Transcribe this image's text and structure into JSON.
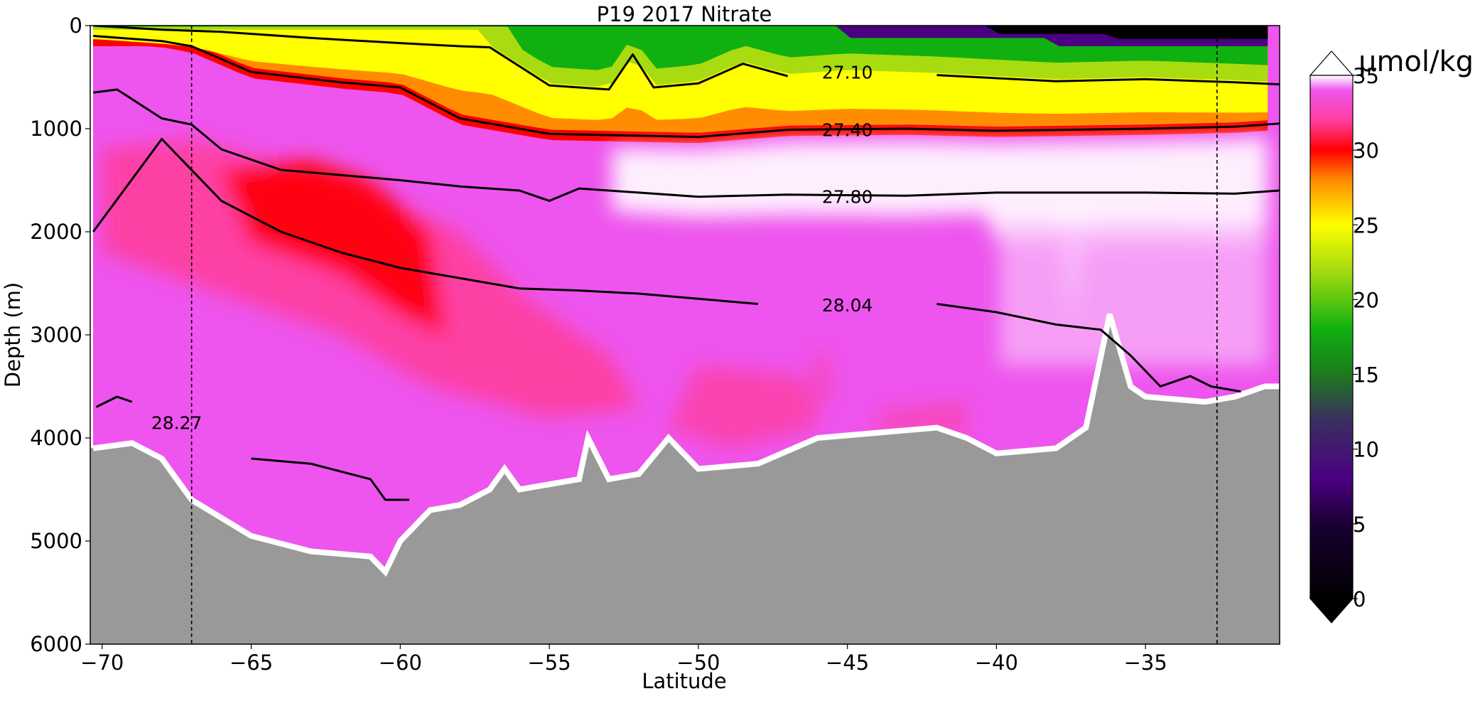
{
  "chart_data": {
    "type": "heatmap",
    "title": "P19 2017 Nitrate",
    "xlabel": "Latitude",
    "ylabel": "Depth (m)",
    "xlim": [
      -70.4,
      -30.5
    ],
    "ylim": [
      6000,
      0
    ],
    "x_ticks": [
      -70,
      -65,
      -60,
      -55,
      -50,
      -45,
      -40,
      -35
    ],
    "y_ticks": [
      0,
      1000,
      2000,
      3000,
      4000,
      5000,
      6000
    ],
    "colorbar": {
      "label": "µmol/kg",
      "range": [
        0,
        35
      ],
      "ticks": [
        0,
        5,
        10,
        15,
        20,
        25,
        30,
        35
      ],
      "extend": "both"
    },
    "colormap": [
      {
        "value": 0,
        "color": "#000000"
      },
      {
        "value": 5,
        "color": "#1a0033"
      },
      {
        "value": 8,
        "color": "#4b0082"
      },
      {
        "value": 12,
        "color": "#3a3060"
      },
      {
        "value": 15,
        "color": "#1d7a1d"
      },
      {
        "value": 18,
        "color": "#10b010"
      },
      {
        "value": 22,
        "color": "#a8dc10"
      },
      {
        "value": 25,
        "color": "#ffff00"
      },
      {
        "value": 28,
        "color": "#ff8c00"
      },
      {
        "value": 30,
        "color": "#ff0000"
      },
      {
        "value": 32,
        "color": "#ff40a0"
      },
      {
        "value": 34,
        "color": "#ee55ee"
      },
      {
        "value": 35,
        "color": "#ffffff"
      }
    ],
    "station_lines_latitude": [
      -67,
      -32.6
    ],
    "contours": [
      {
        "label": "27.10",
        "label_at": [
          -45,
          450
        ],
        "points": [
          [
            -70.3,
            0
          ],
          [
            -68,
            40
          ],
          [
            -66,
            60
          ],
          [
            -63,
            120
          ],
          [
            -60,
            170
          ],
          [
            -58,
            200
          ],
          [
            -57,
            210
          ],
          [
            -55,
            580
          ],
          [
            -53,
            620
          ],
          [
            -52.2,
            280
          ],
          [
            -51.5,
            600
          ],
          [
            -50,
            560
          ],
          [
            -48.5,
            370
          ],
          [
            -47,
            490
          ],
          [
            -45,
            450
          ],
          [
            -42,
            480
          ],
          [
            -38,
            540
          ],
          [
            -35,
            520
          ],
          [
            -32,
            550
          ],
          [
            -30.5,
            570
          ]
        ]
      },
      {
        "label": "27.40",
        "label_at": [
          -45,
          1010
        ],
        "points": [
          [
            -70.3,
            100
          ],
          [
            -68,
            150
          ],
          [
            -67,
            200
          ],
          [
            -65,
            450
          ],
          [
            -62,
            550
          ],
          [
            -60,
            600
          ],
          [
            -58,
            900
          ],
          [
            -55,
            1050
          ],
          [
            -50,
            1080
          ],
          [
            -47,
            1010
          ],
          [
            -43,
            1000
          ],
          [
            -40,
            1020
          ],
          [
            -35,
            1000
          ],
          [
            -32,
            980
          ],
          [
            -30.5,
            950
          ]
        ]
      },
      {
        "label": "27.80",
        "label_at": [
          -45,
          1660
        ],
        "points": [
          [
            -70.3,
            650
          ],
          [
            -69.5,
            620
          ],
          [
            -68,
            900
          ],
          [
            -67,
            960
          ],
          [
            -66,
            1200
          ],
          [
            -64,
            1400
          ],
          [
            -62,
            1450
          ],
          [
            -60,
            1500
          ],
          [
            -58,
            1560
          ],
          [
            -56,
            1600
          ],
          [
            -55,
            1700
          ],
          [
            -54,
            1580
          ],
          [
            -50,
            1660
          ],
          [
            -47,
            1640
          ],
          [
            -43,
            1650
          ],
          [
            -40,
            1620
          ],
          [
            -35,
            1620
          ],
          [
            -32,
            1630
          ],
          [
            -30.5,
            1600
          ]
        ]
      },
      {
        "label": "28.04",
        "label_at": [
          -45,
          2710
        ],
        "points": [
          [
            -70.3,
            2000
          ],
          [
            -68,
            1100
          ],
          [
            -66,
            1700
          ],
          [
            -64,
            2000
          ],
          [
            -62,
            2200
          ],
          [
            -60,
            2350
          ],
          [
            -58,
            2450
          ],
          [
            -56,
            2550
          ],
          [
            -54,
            2570
          ],
          [
            -52,
            2600
          ],
          [
            -50,
            2650
          ],
          [
            -48,
            2700
          ],
          [
            -45,
            2710
          ],
          [
            -42,
            2700
          ],
          [
            -40,
            2780
          ],
          [
            -38,
            2900
          ],
          [
            -36.5,
            2950
          ],
          [
            -35.5,
            3200
          ],
          [
            -34.5,
            3500
          ],
          [
            -33.5,
            3400
          ],
          [
            -32.8,
            3500
          ],
          [
            -31.8,
            3550
          ]
        ]
      },
      {
        "label": "28.27",
        "label_at": [
          -67.5,
          3850
        ],
        "points": [
          [
            -70.2,
            3700
          ],
          [
            -69.5,
            3600
          ],
          [
            -69,
            3650
          ],
          [
            -68,
            3700
          ],
          [
            -67.5,
            3850
          ],
          [
            -66.5,
            4000
          ],
          [
            -65,
            4200
          ],
          [
            -63,
            4250
          ],
          [
            -61,
            4400
          ],
          [
            -60.5,
            4600
          ],
          [
            -59.7,
            4600
          ]
        ]
      }
    ],
    "bottom_depth_m": [
      {
        "lat": -70.3,
        "depth": 4100
      },
      {
        "lat": -69,
        "depth": 4050
      },
      {
        "lat": -68,
        "depth": 4200
      },
      {
        "lat": -67,
        "depth": 4600
      },
      {
        "lat": -65,
        "depth": 4950
      },
      {
        "lat": -63,
        "depth": 5100
      },
      {
        "lat": -61,
        "depth": 5150
      },
      {
        "lat": -60.5,
        "depth": 5300
      },
      {
        "lat": -60,
        "depth": 5000
      },
      {
        "lat": -59,
        "depth": 4700
      },
      {
        "lat": -58,
        "depth": 4650
      },
      {
        "lat": -57,
        "depth": 4500
      },
      {
        "lat": -56.5,
        "depth": 4300
      },
      {
        "lat": -56,
        "depth": 4500
      },
      {
        "lat": -55,
        "depth": 4450
      },
      {
        "lat": -54,
        "depth": 4400
      },
      {
        "lat": -53.7,
        "depth": 4000
      },
      {
        "lat": -53,
        "depth": 4400
      },
      {
        "lat": -52,
        "depth": 4350
      },
      {
        "lat": -51,
        "depth": 4000
      },
      {
        "lat": -50,
        "depth": 4300
      },
      {
        "lat": -48,
        "depth": 4250
      },
      {
        "lat": -46,
        "depth": 4000
      },
      {
        "lat": -44,
        "depth": 3950
      },
      {
        "lat": -42,
        "depth": 3900
      },
      {
        "lat": -41,
        "depth": 4000
      },
      {
        "lat": -40,
        "depth": 4150
      },
      {
        "lat": -38,
        "depth": 4100
      },
      {
        "lat": -37,
        "depth": 3900
      },
      {
        "lat": -36.2,
        "depth": 2800
      },
      {
        "lat": -35.5,
        "depth": 3500
      },
      {
        "lat": -35,
        "depth": 3600
      },
      {
        "lat": -33,
        "depth": 3650
      },
      {
        "lat": -32,
        "depth": 3600
      },
      {
        "lat": -31,
        "depth": 3500
      },
      {
        "lat": -30.5,
        "depth": 3500
      }
    ]
  }
}
